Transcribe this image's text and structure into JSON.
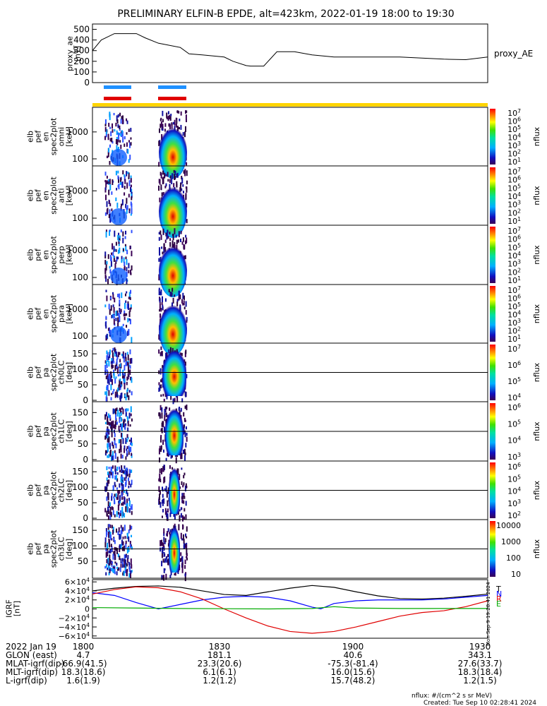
{
  "title": "PRELIMINARY ELFIN-B EPDE, alt=423km, 2022-01-19 18:00 to 19:30",
  "colors": {
    "ae_line": "#000000",
    "bar_blue": "#1e90ff",
    "bar_red": "#e00000",
    "science_bar": "#ffd400",
    "igrf_T": "#000000",
    "igrf_N": "#0000ff",
    "igrf_R": "#e00000",
    "igrf_E": "#00aa00"
  },
  "icons": {
    "nflux_colorbar": "rainbow-colorbar"
  },
  "chart_data": [
    {
      "type": "line",
      "panel": "proxy_ae",
      "ylabel": [
        "proxy_ae",
        "[nT]"
      ],
      "legend": "proxy_AE",
      "y_ticks": [
        "500",
        "400",
        "300",
        "200",
        "100",
        "0"
      ],
      "ylim": [
        0,
        550
      ],
      "xlim": [
        0,
        90
      ],
      "series": [
        {
          "name": "proxy_AE",
          "x": [
            0,
            2,
            5,
            10,
            12,
            15,
            20,
            22,
            25,
            30,
            32,
            35,
            36,
            37,
            39,
            40,
            42,
            45,
            46,
            50,
            55,
            60,
            70,
            80,
            85,
            90
          ],
          "values": [
            300,
            400,
            460,
            460,
            420,
            370,
            330,
            270,
            260,
            240,
            200,
            160,
            155,
            155,
            155,
            200,
            290,
            290,
            290,
            260,
            240,
            240,
            240,
            220,
            215,
            240
          ]
        }
      ]
    },
    {
      "type": "heatmap",
      "panel": "omni",
      "ylabel": [
        "elb",
        "pef",
        "en",
        "spec2plot",
        "omni",
        "[keV]"
      ],
      "y_ticks": [
        "1000",
        "100"
      ],
      "colorbar_ticks": [
        "10^7",
        "10^6",
        "10^5",
        "10^4",
        "10^3",
        "10^2",
        "10^1"
      ],
      "colorbar_label": "nflux"
    },
    {
      "type": "heatmap",
      "panel": "anti",
      "ylabel": [
        "elb",
        "pef",
        "en",
        "spec2plot",
        "anti",
        "[keV]"
      ],
      "y_ticks": [
        "1000",
        "100"
      ],
      "colorbar_ticks": [
        "10^7",
        "10^6",
        "10^5",
        "10^4",
        "10^3",
        "10^2",
        "10^1"
      ],
      "colorbar_label": "nflux"
    },
    {
      "type": "heatmap",
      "panel": "perp",
      "ylabel": [
        "elb",
        "pef",
        "en",
        "spec2plot",
        "perp",
        "[keV]"
      ],
      "y_ticks": [
        "1000",
        "100"
      ],
      "colorbar_ticks": [
        "10^7",
        "10^6",
        "10^5",
        "10^4",
        "10^3",
        "10^2",
        "10^1"
      ],
      "colorbar_label": "nflux"
    },
    {
      "type": "heatmap",
      "panel": "para",
      "ylabel": [
        "elb",
        "pef",
        "en",
        "spec2plot",
        "para",
        "[keV]"
      ],
      "y_ticks": [
        "1000",
        "100"
      ],
      "colorbar_ticks": [
        "10^7",
        "10^6",
        "10^5",
        "10^4",
        "10^3",
        "10^2",
        "10^1"
      ],
      "colorbar_label": "nflux"
    },
    {
      "type": "heatmap",
      "panel": "ch0LC",
      "ylabel": [
        "elb",
        "pef",
        "pa",
        "spec2plot",
        "ch0LC",
        "[deg]"
      ],
      "y_ticks": [
        "150",
        "100",
        "50",
        "0"
      ],
      "colorbar_ticks": [
        "10^7",
        "10^6",
        "10^5",
        "10^4"
      ],
      "colorbar_label": "nflux"
    },
    {
      "type": "heatmap",
      "panel": "ch1LC",
      "ylabel": [
        "elb",
        "pef",
        "pa",
        "spec2plot",
        "ch1LC",
        "[deg]"
      ],
      "y_ticks": [
        "150",
        "100",
        "50",
        "0"
      ],
      "colorbar_ticks": [
        "10^6",
        "10^5",
        "10^4",
        "10^3"
      ],
      "colorbar_label": "nflux"
    },
    {
      "type": "heatmap",
      "panel": "ch2LC",
      "ylabel": [
        "elb",
        "pef",
        "pa",
        "spec2plot",
        "ch2LC",
        "[deg]"
      ],
      "y_ticks": [
        "150",
        "100",
        "50",
        "0"
      ],
      "colorbar_ticks": [
        "10^6",
        "10^5",
        "10^4",
        "10^3",
        "10^2"
      ],
      "colorbar_label": "nflux"
    },
    {
      "type": "heatmap",
      "panel": "ch3LC",
      "ylabel": [
        "elb",
        "pef",
        "pa",
        "spec2plot",
        "ch3LC",
        "[deg]"
      ],
      "y_ticks": [
        "150",
        "100",
        "50"
      ],
      "colorbar_ticks": [
        "10000",
        "1000",
        "100",
        "10"
      ],
      "colorbar_label": "nflux"
    },
    {
      "type": "line",
      "panel": "IGRF",
      "ylabel": [
        "IGRF",
        "[nT]"
      ],
      "y_ticks": [
        "6×10^4",
        "4×10^4",
        "2×10^4",
        "0",
        "−2×10^4",
        "−4×10^4",
        "−6×10^4"
      ],
      "ylim": [
        -65000,
        65000
      ],
      "xlim": [
        0,
        90
      ],
      "legend": [
        "T",
        "N",
        "R",
        "E"
      ],
      "series": [
        {
          "name": "T",
          "x": [
            0,
            5,
            10,
            15,
            20,
            25,
            30,
            35,
            40,
            45,
            50,
            55,
            60,
            65,
            70,
            75,
            80,
            85,
            90
          ],
          "values": [
            40000,
            46000,
            50000,
            51000,
            48000,
            40000,
            32000,
            30000,
            38000,
            46000,
            52000,
            48000,
            38000,
            29000,
            23000,
            22000,
            24000,
            28000,
            33000
          ]
        },
        {
          "name": "N",
          "x": [
            0,
            5,
            10,
            15,
            20,
            25,
            30,
            35,
            40,
            45,
            50,
            52,
            55,
            60,
            65,
            70,
            75,
            80,
            85,
            90
          ],
          "values": [
            36000,
            30000,
            14000,
            0,
            10000,
            20000,
            26000,
            28000,
            26000,
            18000,
            4000,
            200,
            12000,
            18000,
            20000,
            20000,
            20000,
            22000,
            26000,
            30000
          ]
        },
        {
          "name": "R",
          "x": [
            0,
            5,
            10,
            15,
            20,
            25,
            30,
            35,
            40,
            45,
            50,
            55,
            60,
            65,
            70,
            75,
            80,
            85,
            90
          ],
          "values": [
            33000,
            43000,
            49000,
            47000,
            38000,
            22000,
            0,
            -20000,
            -38000,
            -50000,
            -54000,
            -50000,
            -40000,
            -28000,
            -16000,
            -8000,
            -4000,
            5000,
            18000
          ]
        },
        {
          "name": "E",
          "x": [
            0,
            10,
            20,
            30,
            40,
            50,
            55,
            60,
            70,
            80,
            90
          ],
          "values": [
            3000,
            2000,
            1000,
            500,
            0,
            1000,
            5000,
            2000,
            1000,
            1000,
            1000
          ]
        }
      ]
    }
  ],
  "xaxis": {
    "rows": [
      {
        "label": "2022 Jan 19",
        "values": [
          "1800",
          "1830",
          "1900",
          "1930"
        ]
      },
      {
        "label": "GLON (east)",
        "values": [
          "4.7",
          "181.1",
          "40.6",
          "343.1"
        ]
      },
      {
        "label": "MLAT-igrf(dip)",
        "values": [
          "-66.9(41.5)",
          "23.3(20.6)",
          "-75.3(-81.4)",
          "27.6(33.7)"
        ]
      },
      {
        "label": "MLT-igrf(dip)",
        "values": [
          "18.3(18.6)",
          "6.1(6.1)",
          "16.0(15.6)",
          "18.3(18.4)"
        ]
      },
      {
        "label": "L-igrf(dip)",
        "values": [
          "1.6(1.9)",
          "1.2(1.2)",
          "15.7(48.2)",
          "1.2(1.5)"
        ]
      }
    ]
  },
  "footer": {
    "units": "nflux: #/(cm^2 s sr MeV)",
    "created": "Created: Tue Sep 10 02:28:41 2024",
    "side_stamp": "Mon Sep 9 19:28:41 2024"
  }
}
